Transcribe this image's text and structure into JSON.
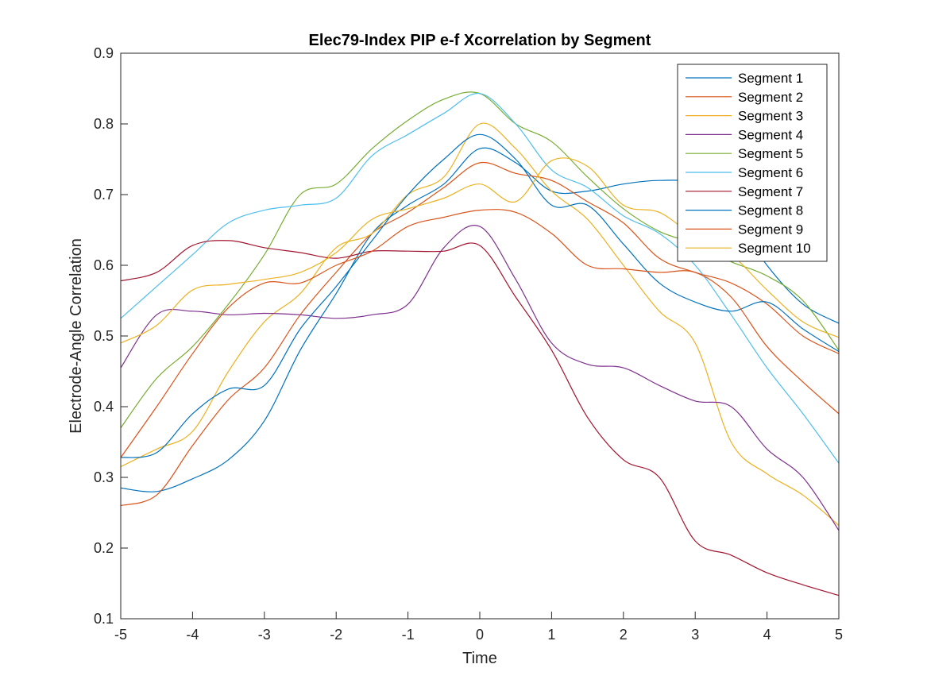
{
  "chart_data": {
    "type": "line",
    "title": "Elec79-Index PIP e-f Xcorrelation by Segment",
    "xlabel": "Time",
    "ylabel": "Electrode-Angle Correlation",
    "xlim": [
      -5,
      5
    ],
    "ylim": [
      0.1,
      0.9
    ],
    "xticks": [
      -5,
      -4,
      -3,
      -2,
      -1,
      0,
      1,
      2,
      3,
      4,
      5
    ],
    "yticks": [
      0.1,
      0.2,
      0.3,
      0.4,
      0.5,
      0.6,
      0.7,
      0.8,
      0.9
    ],
    "xtick_labels": [
      "-5",
      "-4",
      "-3",
      "-2",
      "-1",
      "0",
      "1",
      "2",
      "3",
      "4",
      "5"
    ],
    "ytick_labels": [
      "0.1",
      "0.2",
      "0.3",
      "0.4",
      "0.5",
      "0.6",
      "0.7",
      "0.8",
      "0.9"
    ],
    "grid": false,
    "legend_position": "top-right",
    "x": [
      -5,
      -4.5,
      -4,
      -3.5,
      -3,
      -2.5,
      -2,
      -1.5,
      -1,
      -0.5,
      0,
      0.5,
      1,
      1.5,
      2,
      2.5,
      3,
      3.5,
      4,
      4.5,
      5
    ],
    "series": [
      {
        "name": "Segment 1",
        "color": "#0072BD",
        "values": [
          0.285,
          0.28,
          0.298,
          0.325,
          0.38,
          0.48,
          0.56,
          0.645,
          0.685,
          0.715,
          0.765,
          0.745,
          0.705,
          0.705,
          0.715,
          0.72,
          0.715,
          0.675,
          0.6,
          0.545,
          0.518
        ]
      },
      {
        "name": "Segment 2",
        "color": "#D95319",
        "values": [
          0.26,
          0.275,
          0.345,
          0.41,
          0.455,
          0.53,
          0.59,
          0.645,
          0.675,
          0.71,
          0.745,
          0.73,
          0.72,
          0.69,
          0.66,
          0.61,
          0.59,
          0.575,
          0.545,
          0.5,
          0.475
        ]
      },
      {
        "name": "Segment 3",
        "color": "#EDB120",
        "values": [
          0.315,
          0.34,
          0.365,
          0.45,
          0.52,
          0.56,
          0.625,
          0.645,
          0.7,
          0.725,
          0.8,
          0.765,
          0.705,
          0.665,
          0.6,
          0.535,
          0.49,
          0.35,
          0.305,
          0.275,
          0.232
        ]
      },
      {
        "name": "Segment 4",
        "color": "#7E2F8E",
        "values": [
          0.455,
          0.53,
          0.535,
          0.53,
          0.532,
          0.53,
          0.525,
          0.53,
          0.545,
          0.625,
          0.655,
          0.58,
          0.49,
          0.46,
          0.455,
          0.43,
          0.408,
          0.4,
          0.34,
          0.3,
          0.225
        ]
      },
      {
        "name": "Segment 5",
        "color": "#77AC30",
        "values": [
          0.37,
          0.44,
          0.485,
          0.545,
          0.615,
          0.7,
          0.715,
          0.765,
          0.805,
          0.835,
          0.843,
          0.8,
          0.775,
          0.725,
          0.68,
          0.648,
          0.63,
          0.605,
          0.585,
          0.55,
          0.48
        ]
      },
      {
        "name": "Segment 6",
        "color": "#4DBEEE",
        "values": [
          0.525,
          0.57,
          0.615,
          0.66,
          0.678,
          0.685,
          0.695,
          0.755,
          0.785,
          0.815,
          0.843,
          0.8,
          0.735,
          0.71,
          0.67,
          0.645,
          0.6,
          0.53,
          0.455,
          0.39,
          0.32
        ]
      },
      {
        "name": "Segment 7",
        "color": "#A2142F",
        "values": [
          0.578,
          0.59,
          0.628,
          0.635,
          0.625,
          0.618,
          0.61,
          0.62,
          0.62,
          0.62,
          0.628,
          0.555,
          0.48,
          0.385,
          0.325,
          0.3,
          0.21,
          0.19,
          0.165,
          0.148,
          0.133
        ]
      },
      {
        "name": "Segment 8",
        "color": "#0072BD",
        "values": [
          0.328,
          0.335,
          0.39,
          0.425,
          0.43,
          0.51,
          0.57,
          0.635,
          0.7,
          0.75,
          0.785,
          0.75,
          0.685,
          0.685,
          0.63,
          0.575,
          0.548,
          0.535,
          0.548,
          0.51,
          0.478
        ]
      },
      {
        "name": "Segment 9",
        "color": "#D95319",
        "values": [
          0.328,
          0.4,
          0.475,
          0.54,
          0.575,
          0.575,
          0.6,
          0.62,
          0.655,
          0.668,
          0.678,
          0.675,
          0.645,
          0.6,
          0.595,
          0.59,
          0.59,
          0.555,
          0.485,
          0.435,
          0.39
        ]
      },
      {
        "name": "Segment 10",
        "color": "#EDB120",
        "values": [
          0.49,
          0.515,
          0.565,
          0.573,
          0.58,
          0.59,
          0.618,
          0.665,
          0.68,
          0.695,
          0.715,
          0.69,
          0.748,
          0.74,
          0.685,
          0.675,
          0.64,
          0.615,
          0.565,
          0.52,
          0.498
        ]
      }
    ]
  }
}
